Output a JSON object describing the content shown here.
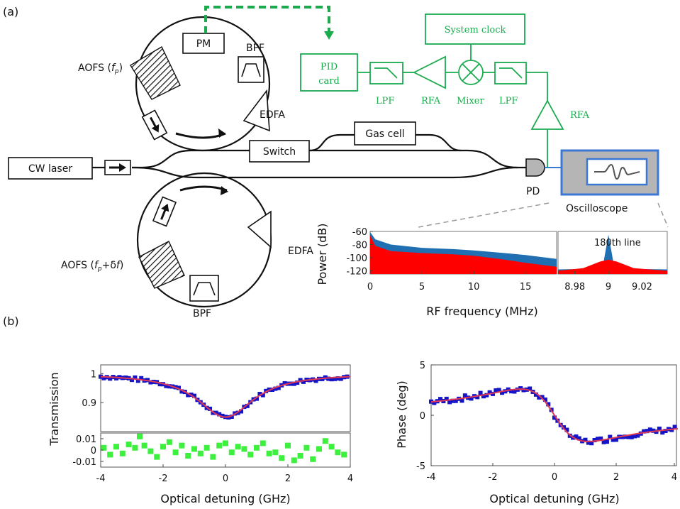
{
  "panel_a_label": "(a)",
  "panel_b_label": "(b)",
  "setup": {
    "cw_laser": "CW laser",
    "switch": "Switch",
    "gas_cell": "Gas cell",
    "pm": "PM",
    "bpf_top": "BPF",
    "bpf_bottom": "BPF",
    "edfa_top": "EDFA",
    "edfa_bottom": "EDFA",
    "aofs_top": "AOFS (f_p)",
    "aofs_bottom": "AOFS (f_p+δf)",
    "pd": "PD",
    "oscilloscope": "Oscilloscope",
    "pid_card_line1": "PID",
    "pid_card_line2": "card",
    "lpf_left": "LPF",
    "rfa_left": "RFA",
    "mixer": "Mixer",
    "lpf_right": "LPF",
    "rfa_right": "RFA",
    "system_clock": "System clock",
    "colors": {
      "control": "#1aab4e",
      "scope": "#3b78d6",
      "scope_fill": "#b5b5b5"
    }
  },
  "chart_data": [
    {
      "id": "rf-spectrum",
      "type": "area",
      "xlabel": "RF frequency (MHz)",
      "ylabel": "Power (dB)",
      "ylim": [
        -125,
        -60
      ],
      "yticks": [
        -60,
        -80,
        -100,
        -120
      ],
      "left": {
        "xlim": [
          0,
          18
        ],
        "xticks": [
          0,
          5,
          10,
          15
        ],
        "series": [
          {
            "color": "#1f6fb2",
            "x": [
              0,
              0.5,
              2,
              5,
              8,
              10,
              13,
              15,
              17,
              18
            ],
            "y": [
              -61,
              -72,
              -80,
              -85,
              -87,
              -89,
              -93,
              -96,
              -100,
              -102
            ]
          },
          {
            "color": "#ff0000",
            "x": [
              0,
              0.5,
              2,
              5,
              8,
              10,
              13,
              15,
              17,
              18
            ],
            "y": [
              -66,
              -82,
              -90,
              -93,
              -95,
              -97,
              -103,
              -108,
              -112,
              -114
            ]
          }
        ]
      },
      "right": {
        "xlim": [
          8.97,
          9.035
        ],
        "xticks": [
          8.98,
          9,
          9.02
        ],
        "annotation": "180th line",
        "series": [
          {
            "color": "#1f6fb2",
            "x": [
              8.97,
              8.99,
              8.997,
              9.0,
              9.003,
              9.01,
              9.035
            ],
            "y": [
              -118,
              -117,
              -108,
              -65,
              -108,
              -117,
              -118
            ]
          },
          {
            "color": "#ff0000",
            "x": [
              8.97,
              8.985,
              8.995,
              9.0,
              9.005,
              9.015,
              9.035
            ],
            "y": [
              -120,
              -116,
              -106,
              -103,
              -106,
              -116,
              -120
            ]
          }
        ]
      }
    },
    {
      "id": "transmission",
      "type": "scatter",
      "xlabel": "Optical detuning (GHz)",
      "ylabel": "Transmission",
      "xlim": [
        -4,
        4
      ],
      "xticks": [
        -4,
        -2,
        0,
        2,
        4
      ],
      "ylim": [
        0.8,
        1.03
      ],
      "yticks": [
        1,
        0.9
      ],
      "series": [
        {
          "name": "",
          "color": "#1515c8",
          "kind": "markers",
          "x": [],
          "y": []
        },
        {
          "name": "",
          "color": "#e03a55",
          "kind": "line",
          "x": [],
          "y": []
        }
      ],
      "residual": {
        "ylim": [
          -0.015,
          0.015
        ],
        "yticks": [
          0.01,
          0,
          -0.01
        ],
        "color": "#3ef03e",
        "x": [
          -3.9,
          -3.7,
          -3.5,
          -3.3,
          -3.1,
          -2.9,
          -2.75,
          -2.6,
          -2.4,
          -2.2,
          -2.0,
          -1.8,
          -1.6,
          -1.4,
          -1.2,
          -1.0,
          -0.8,
          -0.6,
          -0.4,
          -0.2,
          0.0,
          0.2,
          0.4,
          0.6,
          0.8,
          1.0,
          1.2,
          1.4,
          1.6,
          1.8,
          2.0,
          2.2,
          2.4,
          2.6,
          2.8,
          3.0,
          3.2,
          3.4,
          3.6,
          3.8
        ],
        "y": [
          0.002,
          -0.004,
          0.003,
          -0.003,
          0.005,
          0.002,
          0.012,
          0.004,
          -0.001,
          -0.006,
          0.003,
          0.007,
          -0.002,
          0.004,
          -0.005,
          0.001,
          -0.003,
          0.002,
          -0.006,
          0.004,
          0.006,
          -0.002,
          0.003,
          0.001,
          -0.004,
          0.002,
          0.006,
          -0.003,
          -0.002,
          -0.007,
          0.004,
          -0.009,
          -0.005,
          0.002,
          -0.008,
          0.001,
          0.008,
          0.003,
          -0.002,
          -0.004
        ]
      }
    },
    {
      "id": "phase",
      "type": "scatter",
      "xlabel": "Optical detuning (GHz)",
      "ylabel": "Phase (deg)",
      "xlim": [
        -4,
        4
      ],
      "xticks": [
        -4,
        -2,
        0,
        2,
        4
      ],
      "ylim": [
        -5,
        5
      ],
      "yticks": [
        5,
        0,
        -5
      ],
      "series": [
        {
          "name": "",
          "color": "#1515c8",
          "kind": "markers",
          "x": [],
          "y": []
        },
        {
          "name": "",
          "color": "#e03a55",
          "kind": "line",
          "x": [],
          "y": []
        }
      ]
    }
  ]
}
